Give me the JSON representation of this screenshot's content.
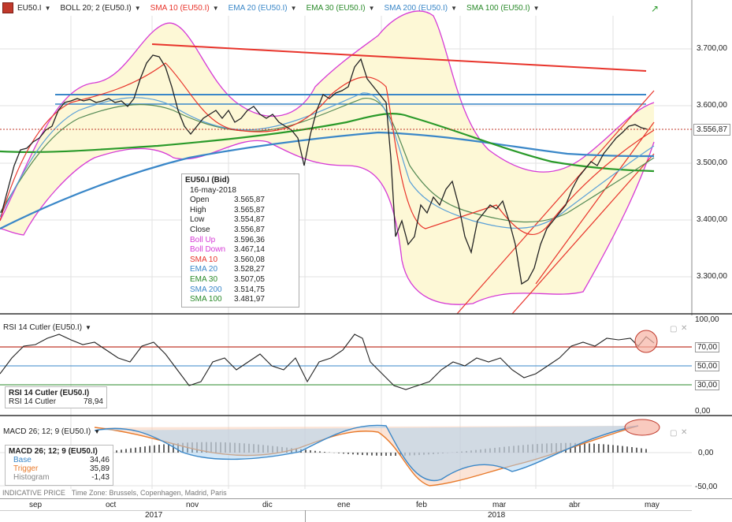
{
  "legend": [
    {
      "label": "EU50.I",
      "color": "#222222"
    },
    {
      "label": "BOLL 20; 2 (EU50.I)",
      "color": "#222222"
    },
    {
      "label": "SMA 10 (EU50.I)",
      "color": "#e8342b"
    },
    {
      "label": "EMA 20 (EU50.I)",
      "color": "#3a87c8"
    },
    {
      "label": "EMA 30 (EU50.I)",
      "color": "#2a8a2a"
    },
    {
      "label": "SMA 200 (EU50.I)",
      "color": "#3a87c8"
    },
    {
      "label": "SMA 100 (EU50.I)",
      "color": "#2a8a2a"
    }
  ],
  "price_axis": [
    "3.700,00",
    "3.600,00",
    "3.500,00",
    "3.400,00",
    "3.300,00"
  ],
  "last_price": "3.556,87",
  "databox": {
    "title": "EU50.I (Bid)",
    "date": "16-may-2018",
    "rows": [
      {
        "k": "Open",
        "v": "3.565,87",
        "color": "#222222"
      },
      {
        "k": "High",
        "v": "3.565,87",
        "color": "#222222"
      },
      {
        "k": "Low",
        "v": "3.554,87",
        "color": "#222222"
      },
      {
        "k": "Close",
        "v": "3.556,87",
        "color": "#222222"
      },
      {
        "k": "Boll Up",
        "v": "3.596,36",
        "color": "#d63ad6"
      },
      {
        "k": "Boll Down",
        "v": "3.467,14",
        "color": "#d63ad6"
      },
      {
        "k": "SMA 10",
        "v": "3.560,08",
        "color": "#e8342b"
      },
      {
        "k": "EMA 20",
        "v": "3.528,27",
        "color": "#3a87c8"
      },
      {
        "k": "EMA 30",
        "v": "3.507,05",
        "color": "#2a8a2a"
      },
      {
        "k": "SMA 200",
        "v": "3.514,75",
        "color": "#3a87c8"
      },
      {
        "k": "SMA 100",
        "v": "3.481,97",
        "color": "#2a8a2a"
      }
    ]
  },
  "rsi": {
    "header": "RSI 14 Cutler (EU50.I)",
    "box_title": "RSI 14 Cutler (EU50.I)",
    "box_label": "RSI 14 Cutler",
    "box_value": "78,94",
    "axis": [
      "100,00",
      "70,00",
      "50,00",
      "30,00",
      "0,00"
    ]
  },
  "macd": {
    "header": "MACD 26; 12; 9 (EU50.I)",
    "box_title": "MACD 26; 12; 9 (EU50.I)",
    "rows": [
      {
        "k": "Base",
        "v": "34,46",
        "color": "#3a87c8"
      },
      {
        "k": "Trigger",
        "v": "35,89",
        "color": "#e87a2b"
      },
      {
        "k": "Histogram",
        "v": "-1,43",
        "color": "#888888"
      }
    ],
    "axis": [
      "0,00",
      "-50,00"
    ]
  },
  "footer": {
    "indicative": "INDICATIVE PRICE",
    "timezone": "Time Zone: Brussels, Copenhagen, Madrid, Paris"
  },
  "months": [
    "sep",
    "oct",
    "nov",
    "dic",
    "ene",
    "feb",
    "mar",
    "abr",
    "may"
  ],
  "years": [
    "2017",
    "2018"
  ]
}
